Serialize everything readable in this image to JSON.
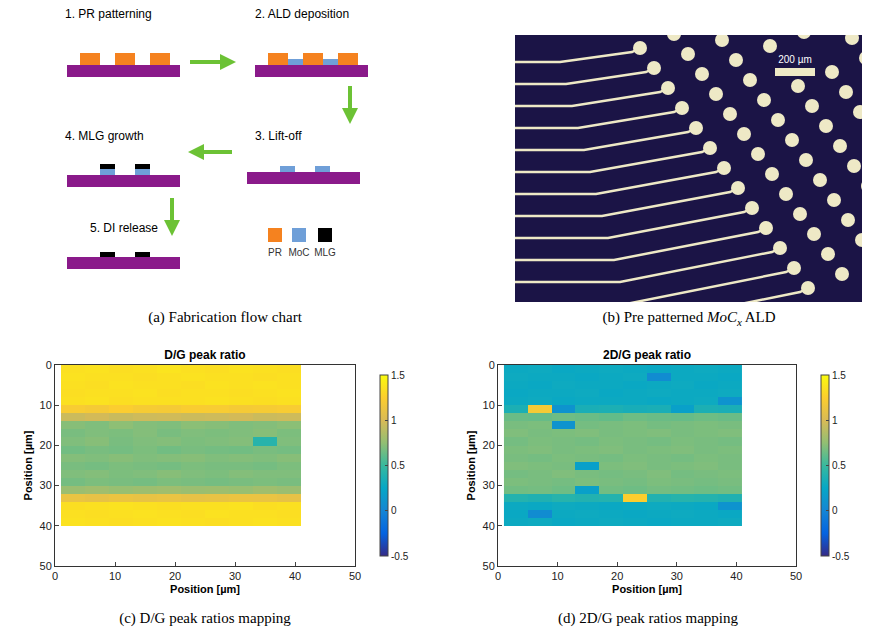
{
  "panels": {
    "a": {
      "caption": "(a) Fabrication flow chart",
      "steps": [
        "1. PR patterning",
        "2. ALD deposition",
        "3. Lift-off",
        "4. MLG growth",
        "5. DI release"
      ],
      "legend": [
        "PR",
        "MoC",
        "MLG"
      ]
    },
    "b": {
      "caption_parts": {
        "prefix": "(b) Pre patterned ",
        "formula": "MoC",
        "subscript": "x",
        "suffix": " ALD"
      },
      "scale_bar": "200 µm"
    }
  },
  "chart_data": [
    {
      "type": "heatmap",
      "title": "D/G peak ratio",
      "caption": "(c) D/G peak ratios mapping",
      "x_label": "Position [µm]",
      "y_label": "Position [µm]",
      "xlim": [
        0,
        50
      ],
      "ylim": [
        50,
        0
      ],
      "xticks": [
        0,
        10,
        20,
        30,
        40,
        50
      ],
      "yticks": [
        0,
        10,
        20,
        30,
        40,
        50
      ],
      "colorbar": {
        "range": [
          -0.5,
          1.5
        ],
        "ticks": [
          -0.5,
          0,
          0.5,
          1,
          1.5
        ]
      },
      "x": [
        3,
        7,
        11,
        15,
        19,
        23,
        27,
        31,
        35,
        39
      ],
      "y": [
        1,
        3,
        5,
        7,
        9,
        11,
        13,
        15,
        17,
        19,
        21,
        23,
        25,
        27,
        29,
        31,
        33,
        35,
        37,
        39
      ],
      "z": [
        [
          1.35,
          1.36,
          1.34,
          1.35,
          1.37,
          1.35,
          1.34,
          1.36,
          1.35,
          1.34
        ],
        [
          1.36,
          1.35,
          1.35,
          1.34,
          1.35,
          1.36,
          1.35,
          1.35,
          1.34,
          1.35
        ],
        [
          1.35,
          1.34,
          1.36,
          1.35,
          1.35,
          1.34,
          1.36,
          1.35,
          1.36,
          1.35
        ],
        [
          1.34,
          1.35,
          1.35,
          1.36,
          1.34,
          1.35,
          1.35,
          1.34,
          1.35,
          1.36
        ],
        [
          1.35,
          1.36,
          1.34,
          1.35,
          1.35,
          1.35,
          1.36,
          1.35,
          1.34,
          1.35
        ],
        [
          1.22,
          1.2,
          1.24,
          1.21,
          1.2,
          1.23,
          1.22,
          1.2,
          1.21,
          1.22
        ],
        [
          0.95,
          0.98,
          0.94,
          0.96,
          0.97,
          0.95,
          0.96,
          0.98,
          0.95,
          0.96
        ],
        [
          0.72,
          0.7,
          0.74,
          0.71,
          0.7,
          0.73,
          0.72,
          0.7,
          0.71,
          0.73
        ],
        [
          0.68,
          0.7,
          0.69,
          0.71,
          0.68,
          0.7,
          0.69,
          0.7,
          0.72,
          0.69
        ],
        [
          0.7,
          0.72,
          0.68,
          0.7,
          0.71,
          0.69,
          0.7,
          0.71,
          0.42,
          0.7
        ],
        [
          0.66,
          0.68,
          0.67,
          0.69,
          0.66,
          0.68,
          0.67,
          0.66,
          0.68,
          0.67
        ],
        [
          0.71,
          0.7,
          0.72,
          0.7,
          0.71,
          0.72,
          0.7,
          0.71,
          0.7,
          0.72
        ],
        [
          0.68,
          0.67,
          0.69,
          0.68,
          0.67,
          0.69,
          0.68,
          0.68,
          0.67,
          0.69
        ],
        [
          0.7,
          0.71,
          0.69,
          0.7,
          0.72,
          0.7,
          0.69,
          0.71,
          0.7,
          0.7
        ],
        [
          0.67,
          0.69,
          0.68,
          0.67,
          0.69,
          0.68,
          0.67,
          0.68,
          0.69,
          0.68
        ],
        [
          0.78,
          0.8,
          0.77,
          0.79,
          0.8,
          0.78,
          0.79,
          0.77,
          0.8,
          0.78
        ],
        [
          1.12,
          1.1,
          1.13,
          1.11,
          1.12,
          1.1,
          1.11,
          1.13,
          1.12,
          1.1
        ],
        [
          1.34,
          1.35,
          1.36,
          1.35,
          1.34,
          1.35,
          1.35,
          1.36,
          1.34,
          1.35
        ],
        [
          1.35,
          1.34,
          1.35,
          1.36,
          1.35,
          1.34,
          1.36,
          1.35,
          1.35,
          1.34
        ],
        [
          1.36,
          1.35,
          1.34,
          1.35,
          1.36,
          1.35,
          1.34,
          1.35,
          1.36,
          1.35
        ]
      ]
    },
    {
      "type": "heatmap",
      "title": "2D/G peak ratio",
      "caption": "(d) 2D/G peak ratios mapping",
      "x_label": "Position [µm]",
      "y_label": "Position [µm]",
      "xlim": [
        0,
        50
      ],
      "ylim": [
        50,
        0
      ],
      "xticks": [
        0,
        10,
        20,
        30,
        40,
        50
      ],
      "yticks": [
        0,
        10,
        20,
        30,
        40,
        50
      ],
      "colorbar": {
        "range": [
          -0.5,
          1.5
        ],
        "ticks": [
          -0.5,
          0,
          0.5,
          1,
          1.5
        ]
      },
      "x": [
        3,
        7,
        11,
        15,
        19,
        23,
        27,
        31,
        35,
        39
      ],
      "y": [
        1,
        3,
        5,
        7,
        9,
        11,
        13,
        15,
        17,
        19,
        21,
        23,
        25,
        27,
        29,
        31,
        33,
        35,
        37,
        39
      ],
      "z": [
        [
          0.28,
          0.29,
          0.27,
          0.28,
          0.29,
          0.28,
          0.27,
          0.28,
          0.29,
          0.28
        ],
        [
          0.29,
          0.28,
          0.28,
          0.27,
          0.28,
          0.29,
          0.05,
          0.28,
          0.28,
          0.27
        ],
        [
          0.28,
          0.27,
          0.29,
          0.28,
          0.28,
          0.27,
          0.28,
          0.29,
          0.27,
          0.28
        ],
        [
          0.27,
          0.28,
          0.28,
          0.29,
          0.27,
          0.28,
          0.29,
          0.28,
          0.28,
          0.29
        ],
        [
          0.28,
          0.29,
          0.27,
          0.28,
          0.28,
          0.28,
          0.27,
          0.28,
          0.29,
          0.1
        ],
        [
          0.36,
          1.2,
          0.1,
          0.35,
          0.36,
          0.34,
          0.35,
          0.2,
          0.36,
          0.35
        ],
        [
          0.64,
          0.63,
          0.65,
          0.64,
          0.62,
          0.65,
          0.64,
          0.63,
          0.65,
          0.64
        ],
        [
          0.68,
          0.69,
          0.1,
          0.67,
          0.68,
          0.69,
          0.67,
          0.68,
          0.69,
          0.68
        ],
        [
          0.7,
          0.68,
          0.69,
          0.7,
          0.68,
          0.69,
          0.7,
          0.68,
          0.69,
          0.7
        ],
        [
          0.67,
          0.69,
          0.68,
          0.67,
          0.69,
          0.68,
          0.67,
          0.69,
          0.68,
          0.67
        ],
        [
          0.69,
          0.7,
          0.68,
          0.69,
          0.7,
          0.68,
          0.69,
          0.7,
          0.68,
          0.69
        ],
        [
          0.68,
          0.67,
          0.69,
          0.68,
          0.67,
          0.69,
          0.68,
          0.67,
          0.69,
          0.68
        ],
        [
          0.7,
          0.69,
          0.68,
          0.2,
          0.69,
          0.7,
          0.68,
          0.69,
          0.7,
          0.68
        ],
        [
          0.67,
          0.68,
          0.7,
          0.68,
          0.67,
          0.68,
          0.7,
          0.67,
          0.68,
          0.69
        ],
        [
          0.69,
          0.68,
          0.67,
          0.69,
          0.68,
          0.67,
          0.69,
          0.68,
          0.67,
          0.68
        ],
        [
          0.66,
          0.67,
          0.65,
          0.2,
          0.66,
          0.65,
          0.67,
          0.66,
          0.65,
          0.66
        ],
        [
          0.4,
          0.38,
          0.41,
          0.39,
          0.4,
          1.25,
          0.39,
          0.41,
          0.4,
          0.38
        ],
        [
          0.28,
          0.27,
          0.29,
          0.28,
          0.27,
          0.28,
          0.29,
          0.28,
          0.27,
          0.1
        ],
        [
          0.27,
          0.05,
          0.28,
          0.29,
          0.28,
          0.27,
          0.28,
          0.29,
          0.28,
          0.27
        ],
        [
          0.28,
          0.29,
          0.27,
          0.28,
          0.29,
          0.28,
          0.27,
          0.28,
          0.28,
          0.29
        ]
      ]
    }
  ]
}
